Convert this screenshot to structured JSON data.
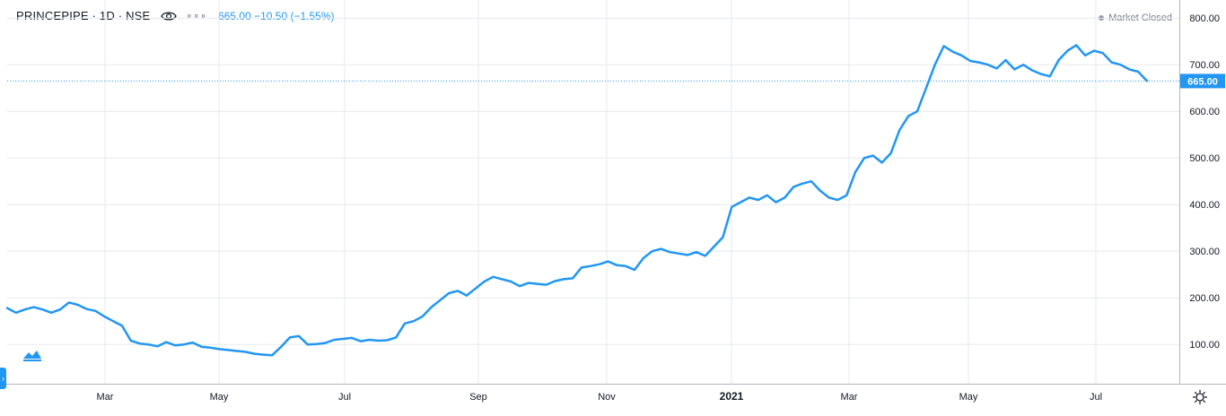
{
  "header": {
    "symbol": "PRINCEPIPE · 1D · NSE",
    "dots": "∘∘∘",
    "quote": "665.00 −10.50 (−1.55%)",
    "status": "Market Closed"
  },
  "price_label": "665.00",
  "colors": {
    "line": "#2196f3",
    "grid": "#e6e9ee",
    "axis_text": "#131722"
  },
  "icons": {
    "eye": "eye-icon",
    "settings": "gear-icon",
    "logo": "tradingview-logo-icon"
  },
  "chart_data": {
    "type": "line",
    "title": "",
    "xlabel": "",
    "ylabel": "",
    "x_ticks": [
      "Mar",
      "May",
      "Jul",
      "Sep",
      "Nov",
      "2021",
      "Mar",
      "May",
      "Jul"
    ],
    "y_ticks": [
      "100.00",
      "200.00",
      "300.00",
      "400.00",
      "500.00",
      "600.00",
      "700.00",
      "800.00"
    ],
    "ylim": [
      10,
      810
    ],
    "last_price": 665.0,
    "grid": true,
    "legend": "top-left",
    "series": [
      {
        "name": "",
        "values": [
          178,
          168,
          175,
          180,
          175,
          168,
          175,
          190,
          185,
          176,
          172,
          160,
          150,
          140,
          108,
          102,
          100,
          96,
          105,
          98,
          100,
          104,
          95,
          93,
          90,
          88,
          86,
          84,
          80,
          78,
          77,
          95,
          115,
          118,
          100,
          101,
          103,
          110,
          112,
          114,
          107,
          110,
          108,
          109,
          115,
          145,
          150,
          160,
          180,
          195,
          210,
          215,
          205,
          220,
          235,
          245,
          240,
          235,
          225,
          232,
          230,
          228,
          236,
          240,
          242,
          265,
          268,
          272,
          278,
          270,
          268,
          260,
          285,
          300,
          305,
          298,
          295,
          292,
          298,
          290,
          310,
          330,
          395,
          405,
          415,
          410,
          420,
          405,
          415,
          438,
          445,
          450,
          430,
          415,
          410,
          420,
          470,
          500,
          505,
          490,
          510,
          560,
          590,
          600,
          650,
          700,
          740,
          728,
          720,
          708,
          705,
          700,
          692,
          710,
          690,
          700,
          688,
          680,
          675,
          710,
          730,
          742,
          720,
          730,
          725,
          705,
          700,
          690,
          685,
          665
        ]
      }
    ]
  }
}
